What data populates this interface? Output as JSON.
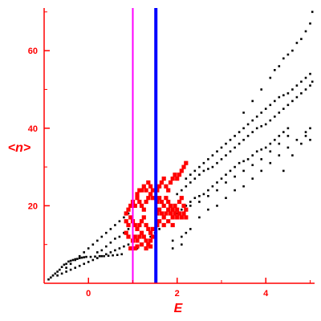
{
  "chart_data": {
    "type": "scatter",
    "title": "",
    "xlabel": "E",
    "ylabel": "<n>",
    "xlim": [
      -1.0,
      5.1
    ],
    "ylim": [
      0,
      71
    ],
    "x_ticks": [
      0,
      2,
      4
    ],
    "y_ticks": [
      20,
      40,
      60
    ],
    "x_tick_labels": [
      "0",
      "2",
      "4"
    ],
    "y_tick_labels": [
      "20",
      "40",
      "60"
    ],
    "colors": {
      "axes": "#ff0000",
      "text": "#ff0000",
      "background_points": "#000000",
      "highlight_points": "#ff0000",
      "vline_1": "#ff00ff",
      "vline_2": "#0000ff"
    },
    "vertical_lines": [
      {
        "x": 1.0,
        "color": "#ff00ff"
      },
      {
        "x": 1.52,
        "color": "#0000ff"
      }
    ],
    "series": [
      {
        "color": "#000000",
        "marker_size": 1.3,
        "points": [
          [
            -0.9,
            1
          ],
          [
            -0.85,
            1.5
          ],
          [
            -0.8,
            2
          ],
          [
            -0.75,
            2.5
          ],
          [
            -0.7,
            3
          ],
          [
            -0.65,
            3.5
          ],
          [
            -0.6,
            4.2
          ],
          [
            -0.55,
            4.8
          ],
          [
            -0.5,
            5
          ],
          [
            -0.45,
            5.6
          ],
          [
            -0.4,
            5.8
          ],
          [
            -0.35,
            6
          ],
          [
            -0.3,
            6.2
          ],
          [
            -0.25,
            6.3
          ],
          [
            -0.2,
            6.5
          ],
          [
            -0.15,
            6.6
          ],
          [
            -0.1,
            6.7
          ],
          [
            -0.05,
            6.8
          ],
          [
            0.05,
            6.8
          ],
          [
            0.15,
            6.9
          ],
          [
            0.25,
            7
          ],
          [
            0.35,
            7
          ],
          [
            0.45,
            7.1
          ],
          [
            0.55,
            7.2
          ],
          [
            0.65,
            7.3
          ],
          [
            0.75,
            7.5
          ],
          [
            -0.7,
            2
          ],
          [
            -0.6,
            2.5
          ],
          [
            -0.5,
            3
          ],
          [
            -0.4,
            3.5
          ],
          [
            -0.3,
            4
          ],
          [
            -0.2,
            4.5
          ],
          [
            -0.1,
            5
          ],
          [
            0,
            5.5
          ],
          [
            0.1,
            6
          ],
          [
            0.2,
            6.5
          ],
          [
            0.3,
            7
          ],
          [
            0.4,
            7.5
          ],
          [
            0.5,
            8
          ],
          [
            0.6,
            8.5
          ],
          [
            0.7,
            9
          ],
          [
            0.8,
            9.5
          ],
          [
            0.9,
            10
          ],
          [
            -0.5,
            4
          ],
          [
            -0.4,
            5
          ],
          [
            -0.3,
            6
          ],
          [
            -0.2,
            7
          ],
          [
            -0.1,
            8
          ],
          [
            0,
            9
          ],
          [
            0.1,
            10
          ],
          [
            0.2,
            11
          ],
          [
            0.3,
            12
          ],
          [
            0.4,
            13
          ],
          [
            0.5,
            14
          ],
          [
            0.6,
            15
          ],
          [
            0.7,
            16
          ],
          [
            0.8,
            17
          ],
          [
            0.9,
            18
          ],
          [
            0.2,
            8
          ],
          [
            0.3,
            8.5
          ],
          [
            0.4,
            9.5
          ],
          [
            0.5,
            10.5
          ],
          [
            0.6,
            11.5
          ],
          [
            0.7,
            12
          ],
          [
            0.8,
            13
          ],
          [
            0.9,
            14
          ],
          [
            1.1,
            9
          ],
          [
            1.2,
            10
          ],
          [
            1.3,
            11
          ],
          [
            1.4,
            12
          ],
          [
            1.5,
            13
          ],
          [
            1.6,
            14
          ],
          [
            1.7,
            15
          ],
          [
            1.8,
            16
          ],
          [
            1.9,
            17
          ],
          [
            2.0,
            18
          ],
          [
            2.1,
            19
          ],
          [
            2.2,
            20
          ],
          [
            2.3,
            21
          ],
          [
            2.4,
            22
          ],
          [
            2.5,
            22.5
          ],
          [
            2.6,
            23
          ],
          [
            2.7,
            24
          ],
          [
            2.8,
            25
          ],
          [
            2.9,
            26
          ],
          [
            3.0,
            27
          ],
          [
            3.1,
            28
          ],
          [
            3.2,
            29
          ],
          [
            3.3,
            30
          ],
          [
            3.4,
            31
          ],
          [
            3.5,
            31.5
          ],
          [
            3.6,
            32
          ],
          [
            3.7,
            33
          ],
          [
            3.8,
            34
          ],
          [
            3.9,
            34.5
          ],
          [
            4.0,
            35
          ],
          [
            4.1,
            36
          ],
          [
            4.2,
            37
          ],
          [
            4.3,
            38
          ],
          [
            4.4,
            39
          ],
          [
            4.5,
            40
          ],
          [
            2.0,
            23
          ],
          [
            2.1,
            24
          ],
          [
            2.2,
            25
          ],
          [
            2.3,
            26
          ],
          [
            2.4,
            27
          ],
          [
            2.5,
            28
          ],
          [
            2.6,
            29
          ],
          [
            2.7,
            29.5
          ],
          [
            2.8,
            30
          ],
          [
            2.9,
            31
          ],
          [
            3.0,
            32
          ],
          [
            3.1,
            33
          ],
          [
            3.2,
            34
          ],
          [
            3.3,
            35
          ],
          [
            3.4,
            36
          ],
          [
            3.5,
            37
          ],
          [
            3.6,
            38
          ],
          [
            3.7,
            39
          ],
          [
            3.8,
            40
          ],
          [
            3.9,
            40.5
          ],
          [
            4.0,
            41
          ],
          [
            4.1,
            42
          ],
          [
            4.2,
            43
          ],
          [
            4.3,
            44
          ],
          [
            4.4,
            45
          ],
          [
            4.5,
            46
          ],
          [
            4.6,
            47
          ],
          [
            4.7,
            48
          ],
          [
            4.8,
            49
          ],
          [
            4.9,
            50
          ],
          [
            5.0,
            51
          ],
          [
            5.05,
            52
          ],
          [
            2.2,
            27
          ],
          [
            2.3,
            28
          ],
          [
            2.4,
            29
          ],
          [
            2.5,
            30
          ],
          [
            2.6,
            31
          ],
          [
            2.7,
            32
          ],
          [
            2.8,
            33
          ],
          [
            2.9,
            34
          ],
          [
            3.0,
            35
          ],
          [
            3.1,
            36
          ],
          [
            3.2,
            37
          ],
          [
            3.3,
            38
          ],
          [
            3.4,
            39
          ],
          [
            3.5,
            40
          ],
          [
            3.6,
            41
          ],
          [
            3.7,
            42
          ],
          [
            3.8,
            43
          ],
          [
            3.9,
            44
          ],
          [
            4.0,
            45
          ],
          [
            4.1,
            46
          ],
          [
            4.2,
            47
          ],
          [
            4.3,
            48
          ],
          [
            4.4,
            48.5
          ],
          [
            4.5,
            49
          ],
          [
            4.6,
            50
          ],
          [
            4.7,
            51
          ],
          [
            4.8,
            52
          ],
          [
            4.9,
            53
          ],
          [
            5.0,
            54
          ],
          [
            2.5,
            17
          ],
          [
            2.7,
            19
          ],
          [
            2.9,
            20
          ],
          [
            3.1,
            22
          ],
          [
            3.3,
            24
          ],
          [
            3.5,
            25
          ],
          [
            3.7,
            27
          ],
          [
            3.9,
            29
          ],
          [
            4.1,
            31
          ],
          [
            4.3,
            33
          ],
          [
            4.5,
            35
          ],
          [
            4.7,
            37
          ],
          [
            4.9,
            39
          ],
          [
            5.0,
            40
          ],
          [
            2.3,
            20
          ],
          [
            2.5,
            21
          ],
          [
            2.7,
            22.5
          ],
          [
            2.9,
            24
          ],
          [
            3.1,
            26
          ],
          [
            3.3,
            27.5
          ],
          [
            3.5,
            29
          ],
          [
            3.7,
            30.5
          ],
          [
            3.9,
            32
          ],
          [
            4.1,
            34
          ],
          [
            4.3,
            36
          ],
          [
            4.5,
            38
          ],
          [
            3.5,
            44
          ],
          [
            3.7,
            47
          ],
          [
            3.9,
            50
          ],
          [
            4.1,
            53
          ],
          [
            4.3,
            56
          ],
          [
            4.5,
            59
          ],
          [
            4.7,
            62
          ],
          [
            4.9,
            65
          ],
          [
            5.0,
            67
          ],
          [
            4.6,
            60
          ],
          [
            4.8,
            63
          ],
          [
            5.05,
            70
          ],
          [
            4.4,
            58
          ],
          [
            4.2,
            55
          ],
          [
            4.4,
            29
          ],
          [
            4.6,
            33
          ],
          [
            4.8,
            36
          ],
          [
            5.0,
            37
          ],
          [
            4.9,
            38
          ],
          [
            1.9,
            9
          ],
          [
            2.1,
            12
          ],
          [
            2.3,
            14
          ],
          [
            2.1,
            10
          ],
          [
            1.9,
            11
          ],
          [
            2.2,
            13
          ]
        ]
      },
      {
        "color": "#ff0000",
        "marker_size": 2.6,
        "points": [
          [
            0.9,
            19
          ],
          [
            0.95,
            20
          ],
          [
            1.0,
            21
          ],
          [
            1.05,
            20
          ],
          [
            1.1,
            22
          ],
          [
            1.15,
            21
          ],
          [
            1.2,
            20
          ],
          [
            1.25,
            19
          ],
          [
            1.3,
            21
          ],
          [
            1.35,
            22
          ],
          [
            1.4,
            23
          ],
          [
            1.45,
            22
          ],
          [
            0.95,
            17
          ],
          [
            1.0,
            16
          ],
          [
            1.05,
            15
          ],
          [
            1.1,
            14
          ],
          [
            1.15,
            15
          ],
          [
            1.2,
            16
          ],
          [
            1.25,
            17
          ],
          [
            1.3,
            15
          ],
          [
            1.35,
            14
          ],
          [
            1.4,
            13
          ],
          [
            1.45,
            14
          ],
          [
            1.0,
            11
          ],
          [
            1.05,
            12
          ],
          [
            1.1,
            11
          ],
          [
            1.15,
            12
          ],
          [
            1.2,
            13
          ],
          [
            1.25,
            12
          ],
          [
            1.3,
            11
          ],
          [
            1.35,
            10
          ],
          [
            1.4,
            11
          ],
          [
            1.45,
            12
          ],
          [
            1.05,
            9
          ],
          [
            1.1,
            9.5
          ],
          [
            1.2,
            10
          ],
          [
            1.3,
            9
          ],
          [
            1.4,
            9.5
          ],
          [
            0.95,
            9
          ],
          [
            0.85,
            13
          ],
          [
            0.85,
            16
          ],
          [
            0.85,
            18
          ],
          [
            0.9,
            15
          ],
          [
            0.9,
            12
          ],
          [
            1.55,
            24
          ],
          [
            1.6,
            25
          ],
          [
            1.65,
            26
          ],
          [
            1.7,
            27
          ],
          [
            1.75,
            25
          ],
          [
            1.8,
            24
          ],
          [
            1.85,
            26
          ],
          [
            1.9,
            27
          ],
          [
            1.95,
            28
          ],
          [
            2.0,
            27
          ],
          [
            2.05,
            28
          ],
          [
            2.1,
            29
          ],
          [
            2.15,
            30
          ],
          [
            2.2,
            31
          ],
          [
            1.55,
            21
          ],
          [
            1.6,
            22
          ],
          [
            1.65,
            21
          ],
          [
            1.7,
            20
          ],
          [
            1.75,
            22
          ],
          [
            1.8,
            21
          ],
          [
            1.85,
            20
          ],
          [
            1.9,
            19
          ],
          [
            1.95,
            20
          ],
          [
            2.0,
            19
          ],
          [
            2.05,
            21
          ],
          [
            2.1,
            22
          ],
          [
            2.15,
            20
          ],
          [
            2.2,
            19
          ],
          [
            1.55,
            18
          ],
          [
            1.6,
            19
          ],
          [
            1.65,
            18
          ],
          [
            1.7,
            17
          ],
          [
            1.75,
            18
          ],
          [
            1.8,
            19
          ],
          [
            1.85,
            18
          ],
          [
            1.9,
            17
          ],
          [
            1.95,
            18
          ],
          [
            2.0,
            17
          ],
          [
            2.05,
            18
          ],
          [
            2.1,
            17
          ],
          [
            2.15,
            18
          ],
          [
            2.2,
            17
          ],
          [
            1.55,
            15
          ],
          [
            1.6,
            16
          ],
          [
            1.7,
            15
          ],
          [
            1.8,
            16
          ],
          [
            1.9,
            15
          ],
          [
            1.2,
            24
          ],
          [
            1.25,
            25
          ],
          [
            1.3,
            24
          ],
          [
            1.35,
            26
          ],
          [
            1.4,
            25
          ],
          [
            1.45,
            24
          ],
          [
            1.1,
            23
          ],
          [
            1.15,
            24
          ]
        ]
      }
    ]
  }
}
